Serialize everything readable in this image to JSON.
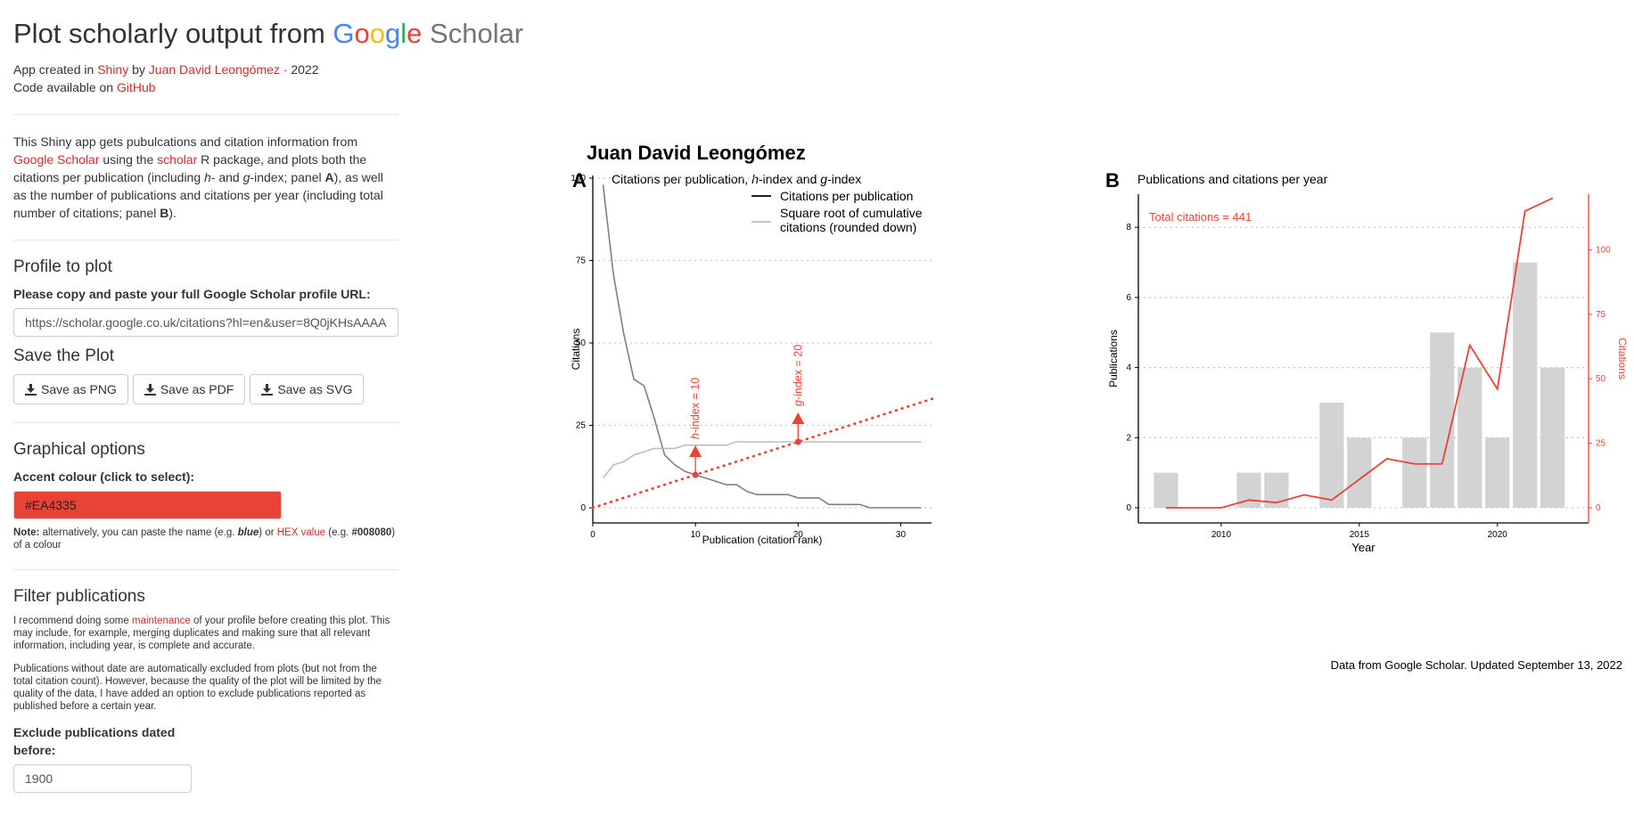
{
  "header": {
    "title_prefix": "Plot scholarly output from",
    "google_letters": [
      "G",
      "o",
      "o",
      "g",
      "l",
      "e"
    ],
    "google_colors": [
      "#4285F4",
      "#EA4335",
      "#FBBC05",
      "#4285F4",
      "#34A853",
      "#EA4335"
    ],
    "scholar_word": "Scholar",
    "credit_1": "App created in",
    "credit_shiny": "Shiny",
    "credit_by": "by",
    "credit_author": "Juan David Leongómez",
    "credit_year": "· 2022",
    "code_prefix": "Code available on",
    "code_link": "GitHub"
  },
  "description": {
    "t1": "This Shiny app gets pubulcations and citation information from",
    "link1": "Google Scholar",
    "t2": "using the",
    "link2": "scholar",
    "t3": "R package, and plots both the citations per publication (including",
    "h": "h",
    "t4": "- and",
    "g": "g",
    "t5": "-index; panel",
    "panelA": "A",
    "t6": "), as well as the number of publications and citations per year (including total number of citations; panel",
    "panelB": "B",
    "t7": ")."
  },
  "profile": {
    "heading": "Profile to plot",
    "label": "Please copy and paste your full Google Scholar profile URL:",
    "url_value": "https://scholar.google.co.uk/citations?hl=en&user=8Q0jKHsAAAA"
  },
  "save": {
    "heading": "Save the Plot",
    "buttons": [
      "Save as PNG",
      "Save as PDF",
      "Save as SVG"
    ]
  },
  "graphical": {
    "heading": "Graphical options",
    "label": "Accent colour (click to select):",
    "accent_value": "#EA4335",
    "note_bold": "Note:",
    "note_t1": "alternatively, you can paste the name (e.g.",
    "note_blue": "blue",
    "note_t2": ") or",
    "note_link": "HEX value",
    "note_t3": "(e.g.",
    "note_hex": "#008080",
    "note_t4": ") of a colour"
  },
  "filter": {
    "heading": "Filter publications",
    "p1_a": "I recommend doing some",
    "p1_link": "maintenance",
    "p1_b": "of your profile before creating this plot. This may include, for example, merging duplicates and making sure that all relevant information, including year, is complete and accurate.",
    "p2": "Publications without date are automatically excluded from plots (but not from the total citation count). However, because the quality of the plot will be limited by the quality of the data, I have added an option to exclude publications reported as published before a certain year.",
    "exclude_label": "Exclude publications dated before:",
    "exclude_value": "1900"
  },
  "plot": {
    "main_title": "Juan David Leongómez",
    "caption": "Data from Google Scholar. Updated September 13, 2022",
    "accent": "#EA4335"
  },
  "chart_data": [
    {
      "type": "line",
      "panel_tag": "A",
      "title_parts": [
        "Citations per publication, ",
        "h",
        "-index and ",
        "g",
        "-index"
      ],
      "xlabel": "Publication (citation rank)",
      "ylabel": "Citations",
      "xlim": [
        0,
        33
      ],
      "ylim": [
        0,
        100
      ],
      "xticks": [
        0,
        10,
        20,
        30
      ],
      "yticks": [
        0,
        25,
        50,
        75,
        100
      ],
      "grid": "horizontal dotted",
      "legend_position": "top-right",
      "legend": [
        "Citations per publication",
        "Square root of cumulative",
        "citations (rounded down)"
      ],
      "series": [
        {
          "name": "Citations per publication",
          "color": "#808080",
          "x": [
            1,
            2,
            3,
            4,
            5,
            6,
            7,
            8,
            9,
            10,
            11,
            12,
            13,
            14,
            15,
            16,
            17,
            18,
            19,
            20,
            21,
            22,
            23,
            24,
            25,
            26,
            27,
            28,
            29,
            30,
            31,
            32
          ],
          "y": [
            98,
            71,
            53,
            39,
            37,
            27,
            16,
            13,
            11,
            10,
            9,
            8,
            7,
            7,
            5,
            4,
            4,
            4,
            4,
            3,
            3,
            3,
            1,
            1,
            1,
            1,
            0,
            0,
            0,
            0,
            0,
            0
          ]
        },
        {
          "name": "Square root of cumulative citations (rounded down)",
          "color": "#BDBDBD",
          "x": [
            1,
            2,
            3,
            4,
            5,
            6,
            7,
            8,
            9,
            10,
            11,
            12,
            13,
            14,
            15,
            16,
            17,
            18,
            19,
            20,
            21,
            22,
            23,
            24,
            25,
            26,
            27,
            28,
            29,
            30,
            31,
            32
          ],
          "y": [
            9,
            13,
            14,
            16,
            17,
            18,
            18,
            18,
            19,
            19,
            19,
            19,
            19,
            20,
            20,
            20,
            20,
            20,
            20,
            20,
            20,
            20,
            20,
            20,
            20,
            20,
            20,
            20,
            20,
            20,
            20,
            20
          ]
        }
      ],
      "reference_line": {
        "x": [
          0,
          33.5
        ],
        "y": [
          0,
          33.5
        ],
        "color": "#EA4335",
        "style": "dotted"
      },
      "annotations": [
        {
          "index": "h",
          "text": "-index = 10",
          "x": 10,
          "y": 10
        },
        {
          "index": "g",
          "text": "-index = 20",
          "x": 20,
          "y": 20
        }
      ]
    },
    {
      "type": "bar",
      "panel_tag": "B",
      "title": "Publications and citations per year",
      "xlabel": "Year",
      "ylabel": "Publications",
      "y2label": "Citations",
      "xlim": [
        2007,
        2023.3
      ],
      "ylim": [
        0,
        9.2
      ],
      "y2lim": [
        0,
        125
      ],
      "xticks": [
        2010,
        2015,
        2020
      ],
      "yticks": [
        0,
        2,
        4,
        6,
        8
      ],
      "y2ticks": [
        0,
        25,
        50,
        75,
        100
      ],
      "grid": "horizontal dotted",
      "annotation": "Total citations = 441",
      "bars": {
        "name": "Publications",
        "color": "#D3D3D3",
        "x": [
          2008,
          2011,
          2012,
          2014,
          2015,
          2017,
          2018,
          2019,
          2020,
          2021,
          2022
        ],
        "values": [
          1,
          1,
          1,
          3,
          2,
          2,
          5,
          4,
          2,
          7,
          4
        ]
      },
      "line": {
        "name": "Citations",
        "color": "#EA4335",
        "x": [
          2008,
          2009,
          2010,
          2011,
          2012,
          2013,
          2014,
          2015,
          2016,
          2017,
          2018,
          2019,
          2020,
          2021,
          2022
        ],
        "values": [
          0,
          0,
          0,
          3,
          2,
          5,
          3,
          11,
          19,
          17,
          17,
          63,
          46,
          115,
          120
        ]
      }
    }
  ]
}
